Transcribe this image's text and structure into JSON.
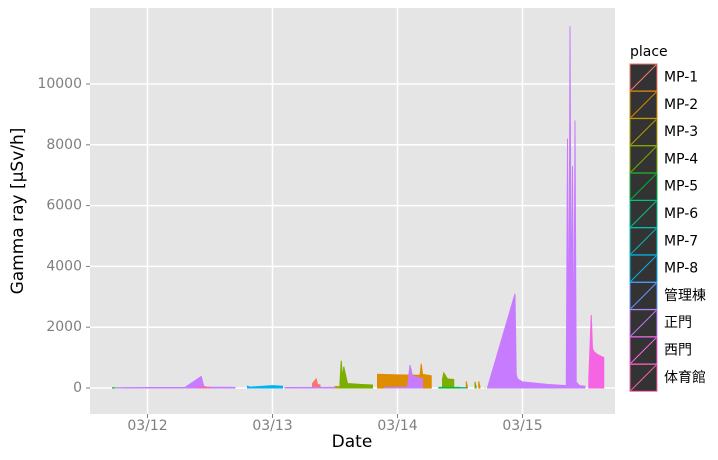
{
  "chart_data": {
    "type": "area",
    "x_label": "Date",
    "y_label": "Gamma ray [μSv/h]",
    "legend_title": "place",
    "xlim": [
      11.54,
      15.74
    ],
    "ylim": [
      -855,
      12500
    ],
    "xticks": [
      {
        "value": 12,
        "label": "03/12"
      },
      {
        "value": 13,
        "label": "03/13"
      },
      {
        "value": 14,
        "label": "03/14"
      },
      {
        "value": 15,
        "label": "03/15"
      }
    ],
    "yticks": [
      0,
      2000,
      4000,
      6000,
      8000,
      10000
    ],
    "grid": true,
    "legend": "right",
    "series": [
      {
        "name": "MP-1",
        "color": "#F8766D",
        "x": [
          13.32,
          13.35,
          13.36,
          13.38
        ],
        "values": [
          150,
          300,
          120,
          100
        ]
      },
      {
        "name": "MP-2",
        "color": "#DE8C00",
        "x": [
          13.84,
          14.0,
          14.18,
          14.19,
          14.2,
          14.27,
          14.28,
          14.55,
          14.56,
          14.57,
          14.65,
          14.66
        ],
        "values": [
          450,
          430,
          420,
          800,
          450,
          400,
          null,
          220,
          30,
          null,
          220,
          30
        ]
      },
      {
        "name": "MP-3",
        "color": "#B79F00",
        "x": [
          13.5,
          13.8
        ],
        "values": [
          50,
          40
        ]
      },
      {
        "name": "MP-4",
        "color": "#7CAE00",
        "x": [
          13.54,
          13.55,
          13.56,
          13.57,
          13.6,
          13.7,
          13.8,
          13.81,
          14.36,
          14.37,
          14.4,
          14.45,
          14.46,
          14.62,
          14.63
        ],
        "values": [
          200,
          900,
          300,
          700,
          150,
          120,
          100,
          null,
          300,
          500,
          300,
          280,
          null,
          200,
          40
        ]
      },
      {
        "name": "MP-5",
        "color": "#00BA38",
        "x": [
          11.72,
          11.74,
          11.75,
          11.82,
          11.83,
          11.86,
          14.33,
          14.5,
          14.68,
          14.7
        ],
        "values": [
          10,
          10,
          null,
          10,
          10,
          null,
          20,
          20,
          null,
          20
        ]
      },
      {
        "name": "MP-6",
        "color": "#00C08B",
        "x": [
          14.5,
          14.55
        ],
        "values": [
          15,
          15
        ]
      },
      {
        "name": "MP-7",
        "color": "#00BFC4",
        "x": [
          12.8,
          12.85
        ],
        "values": [
          20,
          20
        ]
      },
      {
        "name": "MP-8",
        "color": "#00B4F0",
        "x": [
          12.8,
          12.82,
          13.0,
          13.08
        ],
        "values": [
          60,
          30,
          80,
          60
        ]
      },
      {
        "name": "管理棟",
        "color": "#619CFF",
        "x": [
          13.9,
          14.1
        ],
        "values": [
          20,
          20
        ]
      },
      {
        "name": "正門",
        "color": "#C77CFF",
        "x": [
          11.75,
          12.0,
          12.3,
          12.43,
          12.45,
          12.47,
          12.7,
          12.75,
          13.1,
          13.5,
          13.55,
          13.9,
          14.08,
          14.1,
          14.12,
          14.2,
          14.25,
          14.72,
          14.94,
          14.95,
          14.96,
          15.0,
          15.2,
          15.35,
          15.36,
          15.37,
          15.38,
          15.39,
          15.4,
          15.41,
          15.42,
          15.43,
          15.44,
          15.45,
          15.46,
          15.5
        ],
        "values": [
          10,
          15,
          20,
          380,
          60,
          30,
          20,
          null,
          15,
          20,
          null,
          20,
          30,
          750,
          400,
          300,
          null,
          10,
          3100,
          450,
          300,
          200,
          120,
          80,
          8200,
          300,
          11900,
          2200,
          7300,
          300,
          8800,
          200,
          150,
          100,
          80,
          60
        ]
      },
      {
        "name": "西門",
        "color": "#F564E3",
        "x": [
          15.53,
          15.55,
          15.56,
          15.57,
          15.6,
          15.65
        ],
        "values": [
          300,
          2400,
          1300,
          1200,
          1100,
          1000
        ]
      },
      {
        "name": "体育館",
        "color": "#FF64B0",
        "x": [
          12.4,
          12.5
        ],
        "values": [
          30,
          20
        ]
      }
    ]
  }
}
